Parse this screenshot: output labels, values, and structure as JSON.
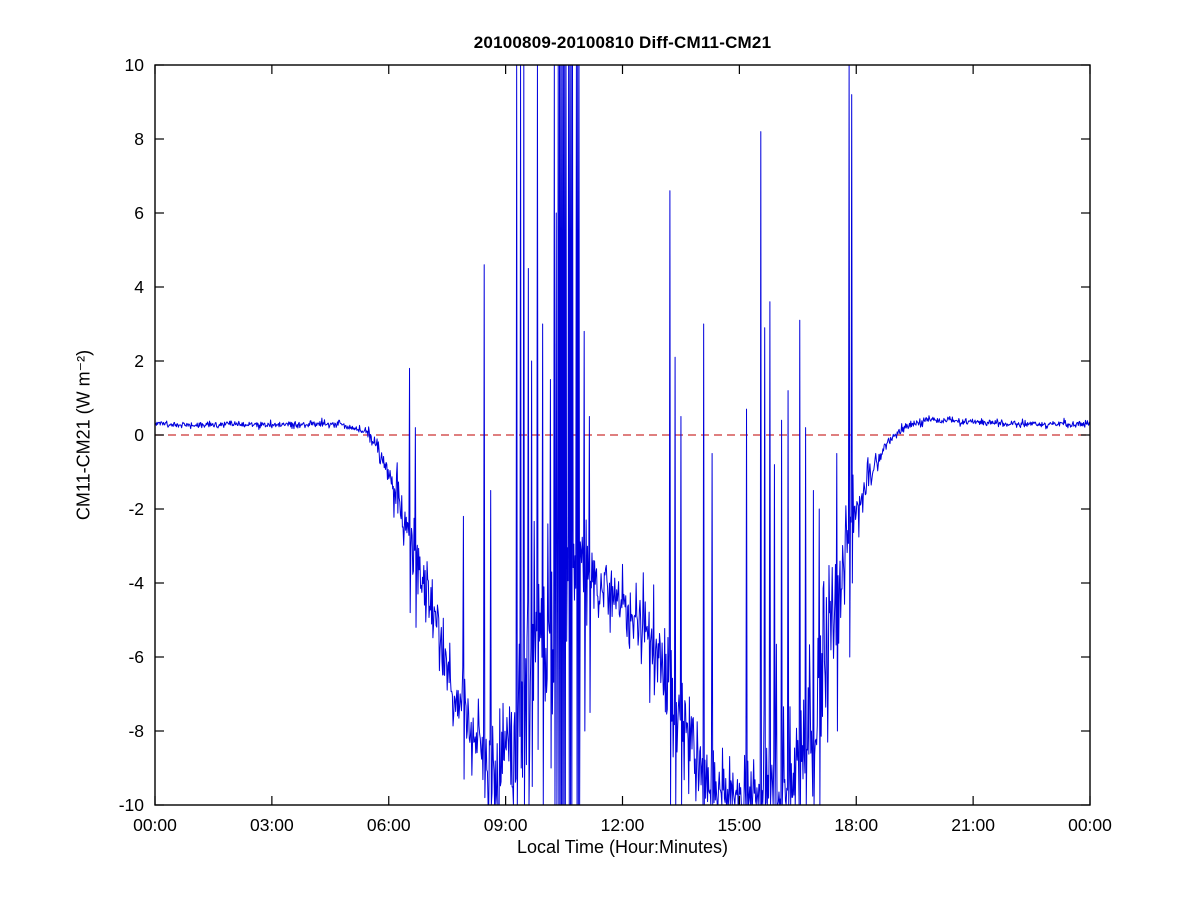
{
  "figure": {
    "background": "#ffffff",
    "frame_color": "#000000",
    "tick_label_color": "#000000"
  },
  "chart_data": {
    "type": "line",
    "title": "20100809-20100810 Diff-CM11-CM21",
    "xlabel": "Local Time (Hour:Minutes)",
    "ylabel": "CM11-CM21 (W m⁻²)",
    "xlim": [
      0,
      24
    ],
    "ylim": [
      -10,
      10
    ],
    "grid": false,
    "legend_position": "none",
    "x_ticks": [
      {
        "value": 0,
        "label": "00:00"
      },
      {
        "value": 3,
        "label": "03:00"
      },
      {
        "value": 6,
        "label": "06:00"
      },
      {
        "value": 9,
        "label": "09:00"
      },
      {
        "value": 12,
        "label": "12:00"
      },
      {
        "value": 15,
        "label": "15:00"
      },
      {
        "value": 18,
        "label": "18:00"
      },
      {
        "value": 21,
        "label": "21:00"
      },
      {
        "value": 24,
        "label": "00:00"
      }
    ],
    "y_ticks": [
      {
        "value": -10,
        "label": "-10"
      },
      {
        "value": -8,
        "label": "-8"
      },
      {
        "value": -6,
        "label": "-6"
      },
      {
        "value": -4,
        "label": "-4"
      },
      {
        "value": -2,
        "label": "-2"
      },
      {
        "value": 0,
        "label": "0"
      },
      {
        "value": 2,
        "label": "2"
      },
      {
        "value": 4,
        "label": "4"
      },
      {
        "value": 6,
        "label": "6"
      },
      {
        "value": 8,
        "label": "8"
      },
      {
        "value": 10,
        "label": "10"
      }
    ],
    "zero_line": {
      "y": 0,
      "color": "#cc3333",
      "style": "dashed"
    },
    "series": [
      {
        "name": "Diff CM11-CM21",
        "color": "#0000dd",
        "line_width": 1,
        "sample_minutes": 1,
        "baseline": [
          [
            0,
            0.3
          ],
          [
            1,
            0.28
          ],
          [
            2,
            0.3
          ],
          [
            3,
            0.27
          ],
          [
            4,
            0.3
          ],
          [
            4.8,
            0.28
          ],
          [
            5.2,
            0.18
          ],
          [
            5.5,
            0.02
          ],
          [
            5.7,
            -0.3
          ],
          [
            5.9,
            -0.8
          ],
          [
            6.1,
            -1.35
          ],
          [
            6.3,
            -2.0
          ],
          [
            6.5,
            -2.6
          ],
          [
            6.7,
            -3.2
          ],
          [
            7.0,
            -4.3
          ],
          [
            7.3,
            -5.5
          ],
          [
            7.6,
            -6.8
          ],
          [
            7.9,
            -7.4
          ],
          [
            8.2,
            -8.3
          ],
          [
            8.5,
            -8.8
          ],
          [
            8.8,
            -9.05
          ],
          [
            9.1,
            -8.5
          ],
          [
            9.4,
            -7.0
          ],
          [
            9.7,
            -6.0
          ],
          [
            10.0,
            -5.5
          ],
          [
            10.3,
            -5.0
          ],
          [
            10.6,
            -4.2
          ],
          [
            10.9,
            -3.8
          ],
          [
            11.2,
            -3.9
          ],
          [
            11.5,
            -4.1
          ],
          [
            11.8,
            -4.3
          ],
          [
            12.1,
            -4.6
          ],
          [
            12.4,
            -5.0
          ],
          [
            12.7,
            -5.6
          ],
          [
            13.0,
            -6.3
          ],
          [
            13.3,
            -7.0
          ],
          [
            13.6,
            -7.8
          ],
          [
            13.9,
            -8.6
          ],
          [
            14.2,
            -9.2
          ],
          [
            14.5,
            -9.6
          ],
          [
            15.0,
            -9.9
          ],
          [
            15.5,
            -9.7
          ],
          [
            16.0,
            -9.4
          ],
          [
            16.4,
            -9.0
          ],
          [
            16.8,
            -8.0
          ],
          [
            17.1,
            -6.5
          ],
          [
            17.4,
            -5.0
          ],
          [
            17.7,
            -3.5
          ],
          [
            17.9,
            -2.6
          ],
          [
            18.1,
            -1.9
          ],
          [
            18.3,
            -1.3
          ],
          [
            18.5,
            -0.8
          ],
          [
            18.7,
            -0.4
          ],
          [
            18.9,
            -0.12
          ],
          [
            19.1,
            0.08
          ],
          [
            19.4,
            0.3
          ],
          [
            19.8,
            0.42
          ],
          [
            20.5,
            0.38
          ],
          [
            21,
            0.35
          ],
          [
            22,
            0.3
          ],
          [
            23,
            0.28
          ],
          [
            24,
            0.3
          ]
        ],
        "noise_std": [
          [
            0,
            0.05
          ],
          [
            5.3,
            0.05
          ],
          [
            5.8,
            0.15
          ],
          [
            6.3,
            0.35
          ],
          [
            7,
            0.45
          ],
          [
            7.8,
            0.4
          ],
          [
            8.4,
            0.55
          ],
          [
            9,
            1.2
          ],
          [
            9.6,
            1.5
          ],
          [
            10.2,
            1.3
          ],
          [
            10.9,
            1.0
          ],
          [
            11.3,
            0.5
          ],
          [
            11.8,
            0.45
          ],
          [
            12.3,
            0.5
          ],
          [
            12.8,
            0.7
          ],
          [
            13.3,
            1.0
          ],
          [
            13.8,
            0.8
          ],
          [
            14.3,
            0.6
          ],
          [
            15,
            0.5
          ],
          [
            15.6,
            0.9
          ],
          [
            16.2,
            1.0
          ],
          [
            16.8,
            1.2
          ],
          [
            17.3,
            1.0
          ],
          [
            17.8,
            0.6
          ],
          [
            18.2,
            0.3
          ],
          [
            18.6,
            0.15
          ],
          [
            19,
            0.08
          ],
          [
            20,
            0.05
          ],
          [
            24,
            0.05
          ]
        ],
        "spikes": [
          [
            6.54,
            -4.8,
            1.8
          ],
          [
            6.68,
            -5.2,
            0.2
          ],
          [
            7.92,
            -9.3,
            -2.2
          ],
          [
            8.45,
            -9.8,
            4.6
          ],
          [
            8.62,
            -10,
            -1.5
          ],
          [
            9.28,
            -10,
            10
          ],
          [
            9.38,
            -9,
            10
          ],
          [
            9.47,
            -10,
            10
          ],
          [
            9.58,
            -10,
            4.5
          ],
          [
            9.66,
            -9.5,
            2.0
          ],
          [
            9.82,
            -8.5,
            10
          ],
          [
            9.95,
            -10,
            3.0
          ],
          [
            10.15,
            -9,
            1.5
          ],
          [
            10.25,
            -10,
            10
          ],
          [
            10.3,
            -10,
            6.0
          ],
          [
            11.02,
            -8,
            2.8
          ],
          [
            11.15,
            -7.5,
            0.5
          ],
          [
            13.22,
            -10,
            6.6
          ],
          [
            13.35,
            -10,
            2.1
          ],
          [
            13.5,
            -10,
            0.5
          ],
          [
            14.08,
            -10,
            3.0
          ],
          [
            14.3,
            -10,
            -0.5
          ],
          [
            15.18,
            -10,
            0.7
          ],
          [
            15.55,
            -10,
            8.2
          ],
          [
            15.65,
            -10,
            2.9
          ],
          [
            15.78,
            -10,
            3.6
          ],
          [
            15.9,
            -10,
            -0.8
          ],
          [
            16.08,
            -10,
            0.4
          ],
          [
            16.25,
            -10,
            1.2
          ],
          [
            16.55,
            -10,
            3.1
          ],
          [
            16.7,
            -10,
            0.2
          ],
          [
            16.9,
            -10,
            -1.5
          ],
          [
            17.05,
            -10,
            -2.0
          ],
          [
            17.5,
            -8,
            -0.5
          ],
          [
            17.82,
            -6,
            10
          ],
          [
            17.88,
            -4,
            9.2
          ]
        ],
        "saturated_bands": [
          [
            10.35,
            10.55,
            -10,
            10
          ],
          [
            10.62,
            10.72,
            -10,
            10
          ],
          [
            10.82,
            10.9,
            -10,
            10
          ]
        ]
      }
    ]
  }
}
